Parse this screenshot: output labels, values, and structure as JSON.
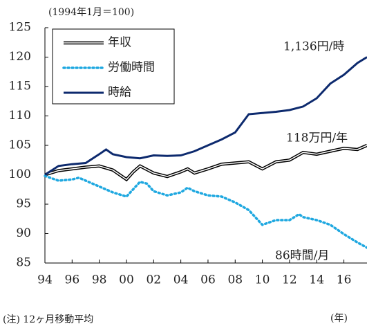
{
  "chart_data": {
    "type": "line",
    "subtitle": "(1994年1月＝100)",
    "note": "(注) 12ヶ月移動平均",
    "x_unit": "(年)",
    "annotations": [
      "1,136円/時",
      "118万円/年",
      "86時間/月"
    ],
    "xlim": [
      1994,
      2017.7
    ],
    "ylim": [
      85,
      125
    ],
    "yticks": [
      85,
      90,
      95,
      100,
      105,
      110,
      115,
      120,
      125
    ],
    "xticks": [
      {
        "value": 1994,
        "label": "94"
      },
      {
        "value": 1996,
        "label": "96"
      },
      {
        "value": 1998,
        "label": "98"
      },
      {
        "value": 2000,
        "label": "00"
      },
      {
        "value": 2002,
        "label": "02"
      },
      {
        "value": 2004,
        "label": "04"
      },
      {
        "value": 2006,
        "label": "06"
      },
      {
        "value": 2008,
        "label": "08"
      },
      {
        "value": 2010,
        "label": "10"
      },
      {
        "value": 2012,
        "label": "12"
      },
      {
        "value": 2014,
        "label": "14"
      },
      {
        "value": 2016,
        "label": "16"
      }
    ],
    "series": [
      {
        "name": "年収",
        "color": "#000000",
        "style": "double",
        "x": [
          1994,
          1995,
          1996,
          1997,
          1998,
          1999,
          2000,
          2000.5,
          2001,
          2002,
          2003,
          2004,
          2004.5,
          2005,
          2006,
          2007,
          2008,
          2009,
          2010,
          2011,
          2012,
          2013,
          2014,
          2015,
          2016,
          2017,
          2017.7
        ],
        "values": [
          100,
          100.7,
          101,
          101.3,
          101.5,
          100.8,
          99.2,
          100.5,
          101.5,
          100.3,
          99.7,
          100.5,
          101,
          100.3,
          101,
          101.8,
          102,
          102.2,
          101,
          102.2,
          102.5,
          103.8,
          103.5,
          104,
          104.5,
          104.3,
          105
        ]
      },
      {
        "name": "労働時間",
        "color": "#1fa8e0",
        "style": "dotted",
        "x": [
          1994,
          1995,
          1996,
          1996.5,
          1997,
          1998,
          1999,
          2000,
          2001,
          2001.5,
          2002,
          2003,
          2004,
          2004.5,
          2005,
          2006,
          2007,
          2008,
          2009,
          2010,
          2011,
          2012,
          2012.7,
          2013,
          2014,
          2015,
          2016,
          2017,
          2017.7
        ],
        "values": [
          99.8,
          99,
          99.2,
          99.5,
          99,
          98,
          97,
          96.3,
          98.8,
          98.5,
          97.2,
          96.5,
          97,
          97.8,
          97.2,
          96.5,
          96.3,
          95.3,
          94,
          91.5,
          92.3,
          92.3,
          93.3,
          92.8,
          92.3,
          91.5,
          89.9,
          88.5,
          87.6
        ]
      },
      {
        "name": "時給",
        "color": "#0d2a6e",
        "style": "solid",
        "x": [
          1994,
          1995,
          1996,
          1997,
          1998,
          1998.5,
          1999,
          2000,
          2001,
          2002,
          2003,
          2004,
          2005,
          2006,
          2007,
          2008,
          2009,
          2010,
          2011,
          2012,
          2013,
          2014,
          2015,
          2016,
          2017,
          2017.7
        ],
        "values": [
          100,
          101.5,
          101.8,
          102,
          103.5,
          104.3,
          103.5,
          103,
          102.8,
          103.3,
          103.2,
          103.3,
          104,
          105,
          106,
          107.2,
          110.3,
          110.5,
          110.7,
          111,
          111.6,
          113,
          115.5,
          117,
          119,
          120
        ]
      }
    ]
  }
}
